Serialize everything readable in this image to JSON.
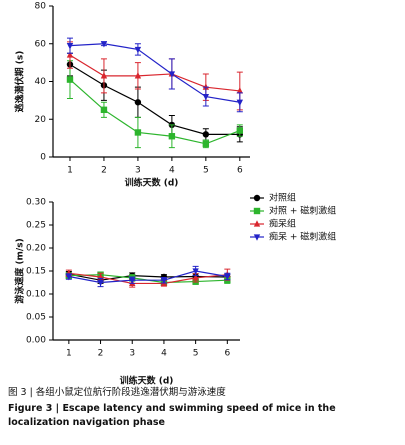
{
  "chart_data": [
    {
      "type": "line",
      "ylabel": "逃逸潜伏期 (s)",
      "xlabel": "训练天数 (d)",
      "x": [
        1,
        2,
        3,
        4,
        5,
        6
      ],
      "xticks": [
        1,
        2,
        3,
        4,
        5,
        6
      ],
      "xlim": [
        0.5,
        6.3
      ],
      "ylim": [
        0,
        80
      ],
      "yticks": [
        0,
        20,
        40,
        60,
        80
      ],
      "series": [
        {
          "color": "#000000",
          "marker": "circle",
          "values": [
            49,
            38,
            29,
            17,
            12,
            12
          ],
          "errors": [
            6,
            8,
            8,
            5,
            3,
            4
          ]
        },
        {
          "color": "#2db52d",
          "marker": "square",
          "values": [
            41,
            25,
            13,
            11,
            7,
            14
          ],
          "errors": [
            10,
            4,
            8,
            6,
            2,
            3
          ]
        },
        {
          "color": "#d9262e",
          "marker": "triangle",
          "values": [
            54,
            43,
            43,
            44,
            37,
            35
          ],
          "errors": [
            7,
            9,
            7,
            8,
            7,
            10
          ]
        },
        {
          "color": "#2323c8",
          "marker": "triangle-down",
          "values": [
            59,
            60,
            57,
            44,
            32,
            29
          ],
          "errors": [
            4,
            1,
            3,
            8,
            5,
            5
          ]
        }
      ]
    },
    {
      "type": "line",
      "ylabel": "游泳速度 (m/s)",
      "xlabel": "训练天数 (d)",
      "x": [
        1,
        2,
        3,
        4,
        5,
        6
      ],
      "xticks": [
        1,
        2,
        3,
        4,
        5,
        6
      ],
      "xlim": [
        0.5,
        6.4
      ],
      "ylim": [
        0,
        0.3
      ],
      "yticks": [
        {
          "value": 0,
          "label": "0.00"
        },
        0.05,
        {
          "value": 0.1,
          "label": "0.10"
        },
        0.15,
        {
          "value": 0.2,
          "label": "0.20"
        },
        0.25,
        {
          "value": 0.3,
          "label": "0.30"
        }
      ],
      "legend": "right",
      "series": [
        {
          "name": "对照组",
          "color": "#000000",
          "marker": "circle",
          "values": [
            0.143,
            0.13,
            0.14,
            0.137,
            0.138,
            0.137
          ],
          "errors": [
            0.006,
            0.007,
            0.006,
            0.005,
            0.006,
            0.006
          ]
        },
        {
          "name": "对照 + 磁刺激组",
          "color": "#2db52d",
          "marker": "square",
          "values": [
            0.14,
            0.142,
            0.135,
            0.125,
            0.127,
            0.13
          ],
          "errors": [
            0.006,
            0.005,
            0.007,
            0.006,
            0.006,
            0.007
          ]
        },
        {
          "name": "痴呆组",
          "color": "#d9262e",
          "marker": "triangle",
          "values": [
            0.145,
            0.137,
            0.123,
            0.123,
            0.135,
            0.142
          ],
          "errors": [
            0.007,
            0.008,
            0.008,
            0.006,
            0.009,
            0.012
          ]
        },
        {
          "name": "痴呆 + 磁刺激组",
          "color": "#2323c8",
          "marker": "triangle-down",
          "values": [
            0.138,
            0.125,
            0.13,
            0.13,
            0.15,
            0.138
          ],
          "errors": [
            0.006,
            0.009,
            0.007,
            0.006,
            0.01,
            0.007
          ]
        }
      ]
    }
  ],
  "caption": {
    "zh": "图 3 | 各组小鼠定位航行阶段逃逸潜伏期与游泳速度",
    "en": "Figure 3 | Escape latency and swimming speed of mice in the localization navigation phase"
  }
}
